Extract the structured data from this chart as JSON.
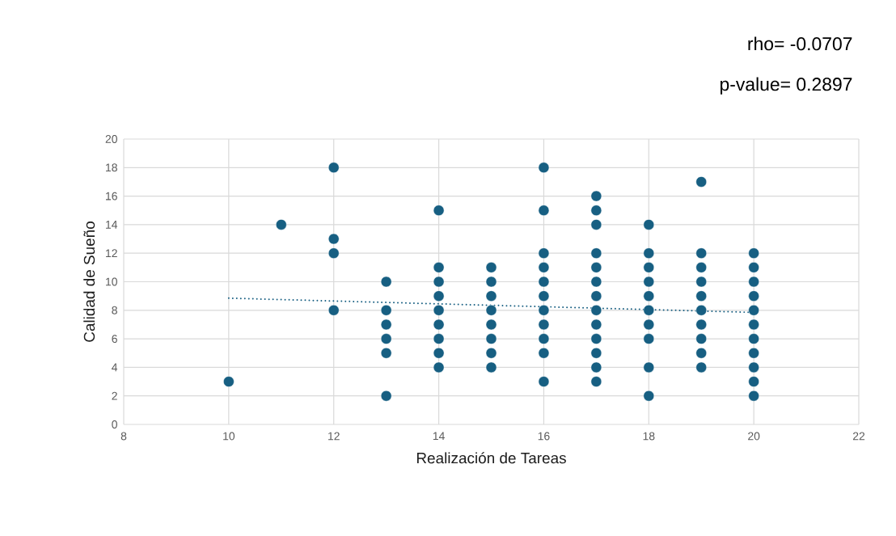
{
  "chart_data": {
    "type": "scatter",
    "xlabel": "Realización de Tareas",
    "ylabel": "Calidad de Sueño",
    "annotations": [
      "rho= -0.0707",
      "p-value= 0.2897"
    ],
    "xlim": [
      8,
      22
    ],
    "xticks": [
      8,
      10,
      12,
      14,
      16,
      18,
      20,
      22
    ],
    "ylim": [
      0,
      20
    ],
    "yticks": [
      0,
      2,
      4,
      6,
      8,
      10,
      12,
      14,
      16,
      18,
      20
    ],
    "grid": true,
    "marker": "circle",
    "series": [
      {
        "color": "#175f82",
        "x": [
          10,
          11,
          12,
          12,
          12,
          12,
          13,
          13,
          13,
          13,
          13,
          13,
          14,
          14,
          14,
          14,
          14,
          14,
          14,
          14,
          14,
          15,
          15,
          15,
          15,
          15,
          15,
          15,
          15,
          16,
          16,
          16,
          16,
          16,
          16,
          16,
          16,
          16,
          16,
          16,
          17,
          17,
          17,
          17,
          17,
          17,
          17,
          17,
          17,
          17,
          17,
          17,
          17,
          18,
          18,
          18,
          18,
          18,
          18,
          18,
          18,
          18,
          18,
          19,
          19,
          19,
          19,
          19,
          19,
          19,
          19,
          19,
          19,
          20,
          20,
          20,
          20,
          20,
          20,
          20,
          20,
          20,
          20,
          20
        ],
        "values": [
          3,
          14,
          18,
          13,
          12,
          8,
          10,
          8,
          7,
          6,
          5,
          2,
          15,
          11,
          10,
          9,
          8,
          7,
          6,
          5,
          4,
          11,
          10,
          9,
          8,
          7,
          6,
          5,
          4,
          18,
          15,
          12,
          11,
          10,
          9,
          8,
          7,
          6,
          5,
          3,
          16,
          15,
          14,
          12,
          11,
          10,
          9,
          8,
          7,
          6,
          5,
          4,
          3,
          14,
          12,
          11,
          10,
          9,
          8,
          7,
          6,
          4,
          2,
          17,
          12,
          11,
          10,
          9,
          8,
          7,
          6,
          5,
          4,
          12,
          11,
          10,
          9,
          8,
          7,
          6,
          5,
          4,
          3,
          2
        ]
      },
      {
        "type": "line",
        "color": "#175f82",
        "marker": "none",
        "line_style": "dotted",
        "x": [
          10,
          20
        ],
        "values": [
          8.85,
          7.85
        ]
      }
    ]
  }
}
